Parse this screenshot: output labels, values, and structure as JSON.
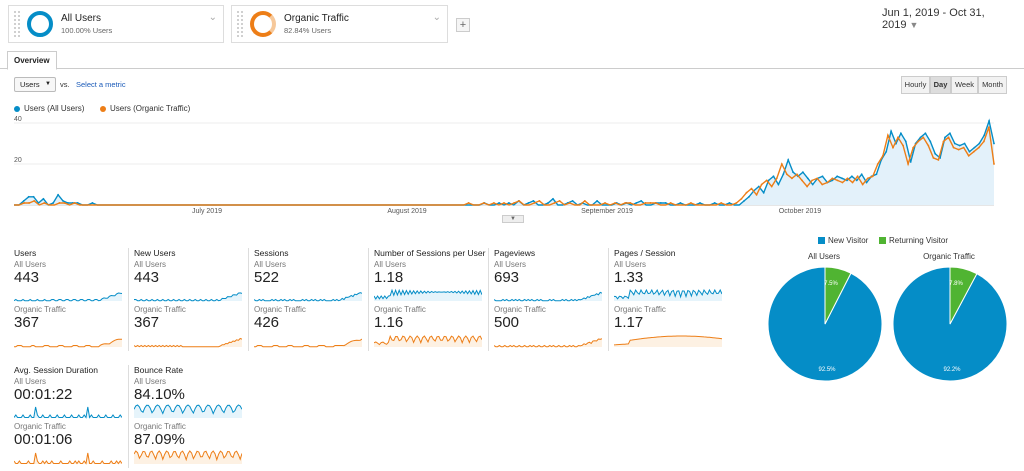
{
  "segments": [
    {
      "title": "All Users",
      "subtitle": "100.00% Users",
      "color": "#058dc7"
    },
    {
      "title": "Organic Traffic",
      "subtitle": "82.84% Users",
      "color": "#ed7e17"
    }
  ],
  "add_segment_label": "+",
  "date_range": "Jun 1, 2019 - Oct 31, 2019",
  "tabs": {
    "overview": "Overview"
  },
  "metric_selector": {
    "selected": "Users",
    "vs": "vs.",
    "select_metric": "Select a metric"
  },
  "granularity": [
    "Hourly",
    "Day",
    "Week",
    "Month"
  ],
  "granularity_active": "Day",
  "legend": [
    "Users (All Users)",
    "Users (Organic Traffic)"
  ],
  "chart_data": {
    "type": "line",
    "x_tick_labels": [
      "July 2019",
      "August 2019",
      "September 2019",
      "October 2019"
    ],
    "y_tick_labels": [
      "40",
      "20"
    ],
    "ylim": [
      0,
      40
    ],
    "grid": true,
    "series": [
      {
        "name": "Users (All Users)",
        "color": "#058dc7",
        "values": [
          0,
          0,
          2,
          4,
          4,
          1,
          3,
          0,
          1,
          5,
          2,
          1,
          1,
          1,
          0,
          0,
          1,
          0,
          0,
          0,
          0,
          0,
          0,
          0,
          0,
          0,
          0,
          0,
          0,
          0,
          0,
          0,
          0,
          0,
          0,
          0,
          0,
          0,
          0,
          0,
          0,
          0,
          0,
          0,
          0,
          0,
          0,
          0,
          0,
          0,
          0,
          0,
          0,
          0,
          0,
          0,
          0,
          0,
          0,
          0,
          0,
          0,
          0,
          0,
          0,
          0,
          0,
          0,
          0,
          0,
          0,
          0,
          0,
          0,
          0,
          0,
          0,
          0,
          0,
          0,
          0,
          0,
          0,
          0,
          0,
          0,
          0,
          0,
          0,
          0,
          0,
          0,
          0,
          0,
          0,
          0,
          1,
          0,
          0,
          1,
          0,
          1,
          0,
          2,
          0,
          1,
          2,
          0,
          0,
          1,
          3,
          0,
          0,
          1,
          2,
          0,
          1,
          0,
          0,
          2,
          0,
          0,
          0,
          1,
          0,
          1,
          0,
          1,
          2,
          0,
          0,
          1,
          1,
          1,
          0,
          0,
          1,
          0,
          0,
          0,
          1,
          0,
          0,
          1,
          0,
          0,
          1,
          0,
          0,
          2,
          4,
          7,
          9,
          6,
          12,
          14,
          10,
          15,
          22,
          16,
          14,
          16,
          13,
          10,
          13,
          14,
          11,
          12,
          14,
          13,
          12,
          14,
          12,
          15,
          11,
          14,
          15,
          22,
          26,
          36,
          30,
          35,
          31,
          21,
          30,
          33,
          35,
          31,
          25,
          23,
          33,
          35,
          30,
          29,
          30,
          26,
          28,
          30,
          34,
          41,
          30
        ]
      },
      {
        "name": "Users (Organic Traffic)",
        "color": "#ed7e17",
        "values": [
          0,
          0,
          1,
          1,
          2,
          0,
          1,
          0,
          0,
          1,
          1,
          0,
          1,
          0,
          0,
          0,
          0,
          0,
          0,
          0,
          0,
          0,
          0,
          0,
          0,
          0,
          0,
          0,
          0,
          0,
          0,
          0,
          0,
          0,
          0,
          0,
          0,
          0,
          0,
          0,
          0,
          0,
          0,
          0,
          0,
          0,
          0,
          0,
          0,
          0,
          0,
          0,
          0,
          0,
          0,
          0,
          0,
          0,
          0,
          0,
          0,
          0,
          0,
          0,
          0,
          0,
          0,
          0,
          0,
          0,
          0,
          0,
          0,
          0,
          0,
          0,
          0,
          0,
          0,
          0,
          0,
          0,
          0,
          0,
          0,
          0,
          0,
          0,
          0,
          0,
          1,
          0,
          0,
          1,
          0,
          1,
          0,
          1,
          0,
          1,
          2,
          0,
          0,
          1,
          2,
          0,
          0,
          1,
          2,
          0,
          1,
          0,
          0,
          2,
          0,
          0,
          0,
          1,
          0,
          1,
          0,
          1,
          1,
          0,
          0,
          1,
          1,
          1,
          0,
          0,
          1,
          0,
          0,
          0,
          1,
          0,
          0,
          0,
          0,
          0,
          1,
          0,
          0,
          1,
          3,
          6,
          8,
          5,
          10,
          12,
          9,
          13,
          20,
          15,
          13,
          15,
          12,
          9,
          12,
          13,
          10,
          11,
          13,
          12,
          11,
          13,
          11,
          14,
          10,
          13,
          14,
          20,
          24,
          34,
          28,
          33,
          29,
          20,
          28,
          31,
          33,
          29,
          23,
          22,
          31,
          33,
          28,
          27,
          28,
          24,
          26,
          28,
          31,
          38,
          20
        ]
      }
    ]
  },
  "metrics": [
    {
      "title": "Users",
      "seg1": "All Users",
      "value1": "443",
      "seg2": "Organic Traffic",
      "value2": "367"
    },
    {
      "title": "New Users",
      "seg1": "All Users",
      "value1": "443",
      "seg2": "Organic Traffic",
      "value2": "367"
    },
    {
      "title": "Sessions",
      "seg1": "All Users",
      "value1": "522",
      "seg2": "Organic Traffic",
      "value2": "426"
    },
    {
      "title": "Number of Sessions per User",
      "seg1": "All Users",
      "value1": "1.18",
      "seg2": "Organic Traffic",
      "value2": "1.16"
    },
    {
      "title": "Pageviews",
      "seg1": "All Users",
      "value1": "693",
      "seg2": "Organic Traffic",
      "value2": "500"
    },
    {
      "title": "Pages / Session",
      "seg1": "All Users",
      "value1": "1.33",
      "seg2": "Organic Traffic",
      "value2": "1.17"
    },
    {
      "title": "Avg. Session Duration",
      "seg1": "All Users",
      "value1": "00:01:22",
      "seg2": "Organic Traffic",
      "value2": "00:01:06"
    },
    {
      "title": "Bounce Rate",
      "seg1": "All Users",
      "value1": "84.10%",
      "seg2": "Organic Traffic",
      "value2": "87.09%"
    }
  ],
  "pie_legend": [
    {
      "label": "New Visitor",
      "color": "#058dc7"
    },
    {
      "label": "Returning Visitor",
      "color": "#50b432"
    }
  ],
  "pies": [
    {
      "title": "All Users",
      "new_pct": 92.5,
      "returning_pct": 7.5,
      "new_label": "92.5%",
      "returning_label": "7.5%"
    },
    {
      "title": "Organic Traffic",
      "new_pct": 92.2,
      "returning_pct": 7.8,
      "new_label": "92.2%",
      "returning_label": "7.8%"
    }
  ]
}
